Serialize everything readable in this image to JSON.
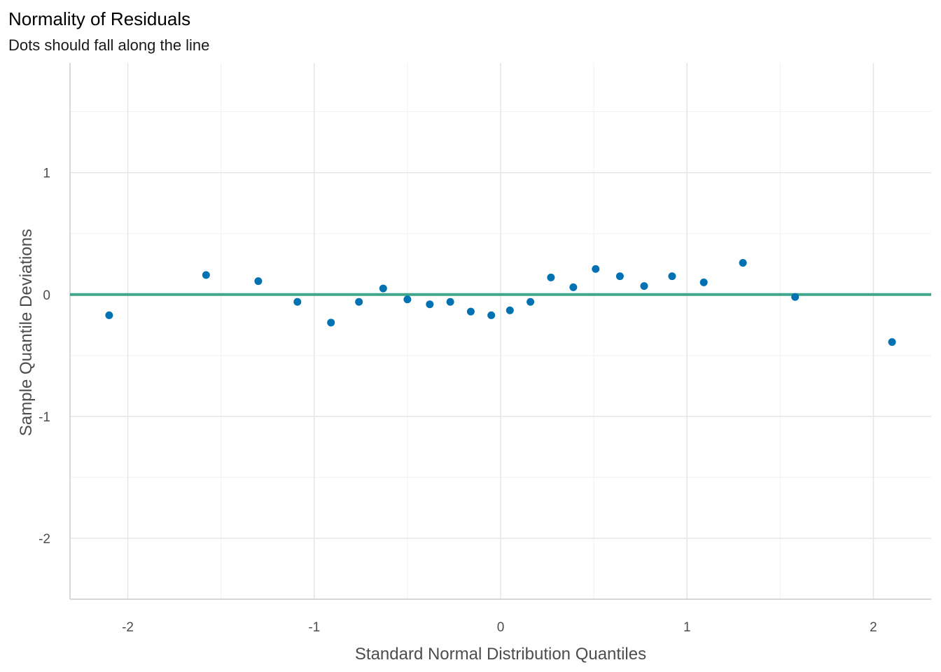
{
  "chart_data": {
    "type": "scatter",
    "title": "Normality of Residuals",
    "subtitle": "Dots should fall along the line",
    "xlabel": "Standard Normal Distribution Quantiles",
    "ylabel": "Sample Quantile Deviations",
    "xlim": [
      -2.31,
      2.31
    ],
    "ylim": [
      -2.5,
      1.9
    ],
    "x_ticks": [
      -2,
      -1,
      0,
      1,
      2
    ],
    "y_ticks": [
      -2,
      -1,
      0,
      1
    ],
    "x_tick_labels": [
      "-2",
      "-1",
      "0",
      "1",
      "2"
    ],
    "y_tick_labels": [
      "-2",
      "-1",
      "0",
      "1"
    ],
    "grid": true,
    "reference_line": {
      "y": 0,
      "color": "#3FA68B"
    },
    "point_color": "#0072B2",
    "points": [
      {
        "x": -2.1,
        "y": -0.17
      },
      {
        "x": -1.58,
        "y": 0.16
      },
      {
        "x": -1.3,
        "y": 0.11
      },
      {
        "x": -1.09,
        "y": -0.06
      },
      {
        "x": -0.91,
        "y": -0.23
      },
      {
        "x": -0.76,
        "y": -0.06
      },
      {
        "x": -0.63,
        "y": 0.05
      },
      {
        "x": -0.5,
        "y": -0.04
      },
      {
        "x": -0.38,
        "y": -0.08
      },
      {
        "x": -0.27,
        "y": -0.06
      },
      {
        "x": -0.16,
        "y": -0.14
      },
      {
        "x": -0.05,
        "y": -0.17
      },
      {
        "x": 0.05,
        "y": -0.13
      },
      {
        "x": 0.16,
        "y": -0.06
      },
      {
        "x": 0.27,
        "y": 0.14
      },
      {
        "x": 0.39,
        "y": 0.06
      },
      {
        "x": 0.51,
        "y": 0.21
      },
      {
        "x": 0.64,
        "y": 0.15
      },
      {
        "x": 0.77,
        "y": 0.07
      },
      {
        "x": 0.92,
        "y": 0.15
      },
      {
        "x": 1.09,
        "y": 0.1
      },
      {
        "x": 1.3,
        "y": 0.26
      },
      {
        "x": 1.58,
        "y": -0.02
      },
      {
        "x": 2.1,
        "y": -0.39
      }
    ]
  }
}
